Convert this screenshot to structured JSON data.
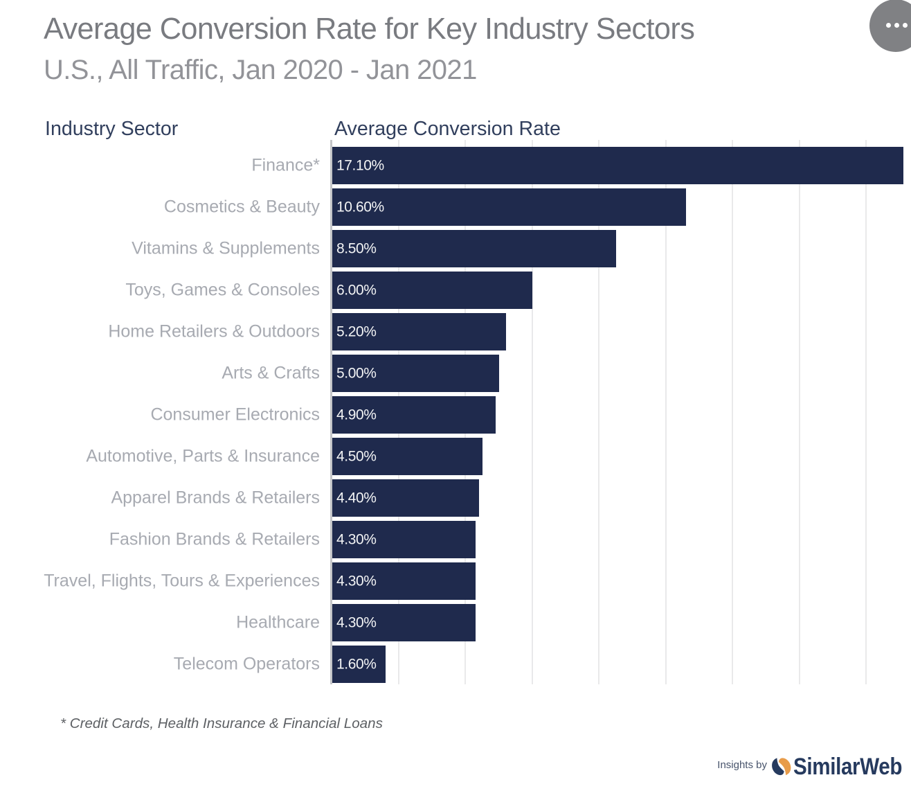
{
  "chart_data": {
    "type": "bar",
    "orientation": "horizontal",
    "title": "Average Conversion Rate for Key Industry Sectors",
    "subtitle": "U.S., All Traffic, Jan 2020 - Jan 2021",
    "column_headers": [
      "Industry Sector",
      "Average Conversion Rate"
    ],
    "categories": [
      "Finance*",
      "Cosmetics & Beauty",
      "Vitamins & Supplements",
      "Toys, Games & Consoles",
      "Home Retailers & Outdoors",
      "Arts & Crafts",
      "Consumer Electronics",
      "Automotive, Parts & Insurance",
      "Apparel Brands & Retailers",
      "Fashion Brands & Retailers",
      "Travel, Flights, Tours & Experiences",
      "Healthcare",
      "Telecom Operators"
    ],
    "values": [
      17.1,
      10.6,
      8.5,
      6.0,
      5.2,
      5.0,
      4.9,
      4.5,
      4.4,
      4.3,
      4.3,
      4.3,
      1.6
    ],
    "value_labels": [
      "17.10%",
      "10.60%",
      "8.50%",
      "6.00%",
      "5.20%",
      "5.00%",
      "4.90%",
      "4.50%",
      "4.40%",
      "4.30%",
      "4.30%",
      "4.30%",
      "1.60%"
    ],
    "xlim": [
      0,
      17.34
    ],
    "gridline_interval_pct": 2,
    "grid": true,
    "legend": "none",
    "footnote": "* Credit Cards, Health Insurance & Financial Loans",
    "bar_color": "#1f2a4d"
  },
  "footer": {
    "insights_by": "Insights by",
    "brand": "SimilarWeb"
  },
  "colors": {
    "title": "#797b80",
    "subtitle": "#929398",
    "column_header": "#313f5d",
    "category_label": "#a7aab1",
    "value_label": "#f3f4f5",
    "gridline": "#e9e9ea",
    "axis_line": "#c4c5c8",
    "menu_button": "#808184",
    "brand_navy": "#263a5e",
    "brand_orange": "#e89c4a",
    "background": "#ffffff"
  }
}
